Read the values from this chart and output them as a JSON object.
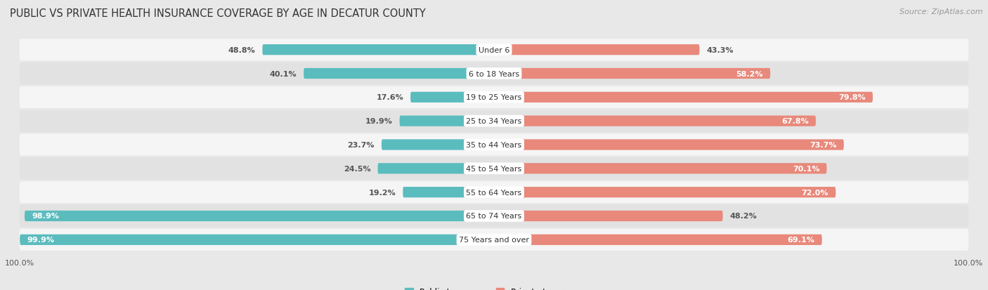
{
  "title": "PUBLIC VS PRIVATE HEALTH INSURANCE COVERAGE BY AGE IN DECATUR COUNTY",
  "source": "Source: ZipAtlas.com",
  "categories": [
    "Under 6",
    "6 to 18 Years",
    "19 to 25 Years",
    "25 to 34 Years",
    "35 to 44 Years",
    "45 to 54 Years",
    "55 to 64 Years",
    "65 to 74 Years",
    "75 Years and over"
  ],
  "public_values": [
    48.8,
    40.1,
    17.6,
    19.9,
    23.7,
    24.5,
    19.2,
    98.9,
    99.9
  ],
  "private_values": [
    43.3,
    58.2,
    79.8,
    67.8,
    73.7,
    70.1,
    72.0,
    48.2,
    69.1
  ],
  "public_color": "#5bbcbe",
  "private_color": "#e8897b",
  "public_label": "Public Insurance",
  "private_label": "Private Insurance",
  "bg_color": "#e8e8e8",
  "row_bg_light": "#f5f5f5",
  "row_bg_dark": "#e2e2e2",
  "label_color_dark": "#555555",
  "label_color_light": "#ffffff",
  "title_fontsize": 10.5,
  "source_fontsize": 8,
  "bar_label_fontsize": 8,
  "cat_label_fontsize": 8,
  "legend_fontsize": 8.5,
  "max_val": 100,
  "axis_label": "100.0%"
}
